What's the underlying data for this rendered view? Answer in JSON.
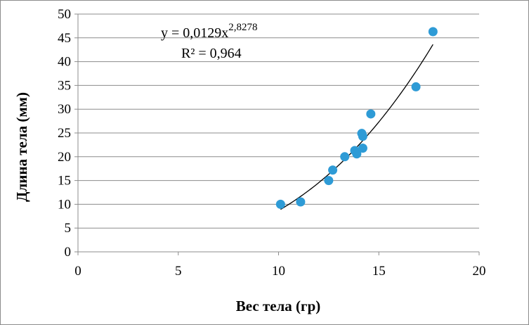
{
  "chart_data": {
    "type": "scatter",
    "xlabel": "Вес тела (гр)",
    "ylabel": "Длина тела (мм)",
    "xlim": [
      0,
      20
    ],
    "ylim": [
      0,
      50
    ],
    "x_ticks": [
      0,
      5,
      10,
      15,
      20
    ],
    "y_ticks": [
      0,
      5,
      10,
      15,
      20,
      25,
      30,
      35,
      40,
      45,
      50
    ],
    "x_tick_labels": [
      "0",
      "5",
      "10",
      "15",
      "20"
    ],
    "y_tick_labels": [
      "0",
      "5",
      "10",
      "15",
      "20",
      "25",
      "30",
      "35",
      "40",
      "45",
      "50"
    ],
    "grid": "horizontal",
    "series": [
      {
        "color": "#2e9bd6",
        "points": [
          {
            "x": 10.1,
            "y": 10.0
          },
          {
            "x": 11.1,
            "y": 10.5
          },
          {
            "x": 12.5,
            "y": 15.0
          },
          {
            "x": 12.7,
            "y": 17.2
          },
          {
            "x": 13.3,
            "y": 20.0
          },
          {
            "x": 13.8,
            "y": 21.3
          },
          {
            "x": 13.9,
            "y": 20.6
          },
          {
            "x": 14.15,
            "y": 24.9
          },
          {
            "x": 14.2,
            "y": 24.3
          },
          {
            "x": 14.2,
            "y": 21.8
          },
          {
            "x": 14.6,
            "y": 29.0
          },
          {
            "x": 16.85,
            "y": 34.7
          },
          {
            "x": 17.7,
            "y": 46.3
          }
        ]
      }
    ],
    "trendline": {
      "type": "power",
      "coefficient": 0.0129,
      "exponent": 2.8278,
      "x_range": [
        10.1,
        17.7
      ],
      "color": "#000000"
    },
    "annotations": {
      "equation_base": "y = 0,0129x",
      "equation_exponent": "2,8278",
      "r_squared": "R² = 0,964"
    }
  }
}
